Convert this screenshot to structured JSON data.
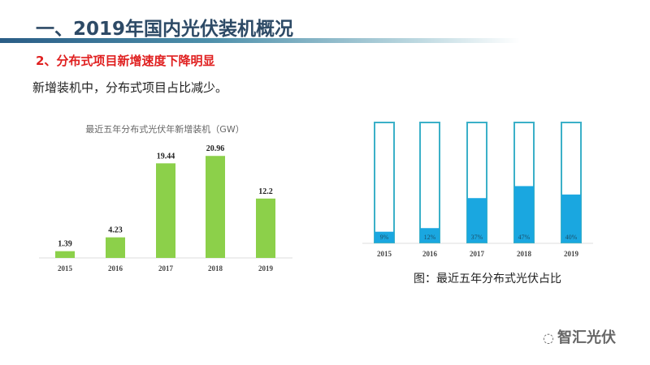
{
  "header": {
    "title": "一、2019年国内光伏装机概况",
    "subtitle": "2、分布式项目新增速度下降明显",
    "description": "新增装机中，分布式项目占比减少。"
  },
  "chart_data": [
    {
      "type": "bar",
      "title": "最近五年分布式光伏年新增装机（GW）",
      "categories": [
        "2015",
        "2016",
        "2017",
        "2018",
        "2019"
      ],
      "values": [
        1.39,
        4.23,
        19.44,
        20.96,
        12.2
      ],
      "labels": [
        "1.39",
        "4.23",
        "19.44",
        "20.96",
        "12.2"
      ],
      "color": "#8cd04a",
      "ylim": [
        0,
        21
      ]
    },
    {
      "type": "bar",
      "title": "图：最近五年分布式光伏占比",
      "categories": [
        "2015",
        "2016",
        "2017",
        "2018",
        "2019"
      ],
      "values": [
        9,
        12,
        37,
        47,
        40
      ],
      "labels": [
        "9%",
        "12%",
        "37%",
        "47%",
        "40%"
      ],
      "color": "#1aa7e0",
      "ylim": [
        0,
        100
      ]
    }
  ],
  "watermark": {
    "text": "智汇光伏",
    "icon": "wechat-icon"
  }
}
